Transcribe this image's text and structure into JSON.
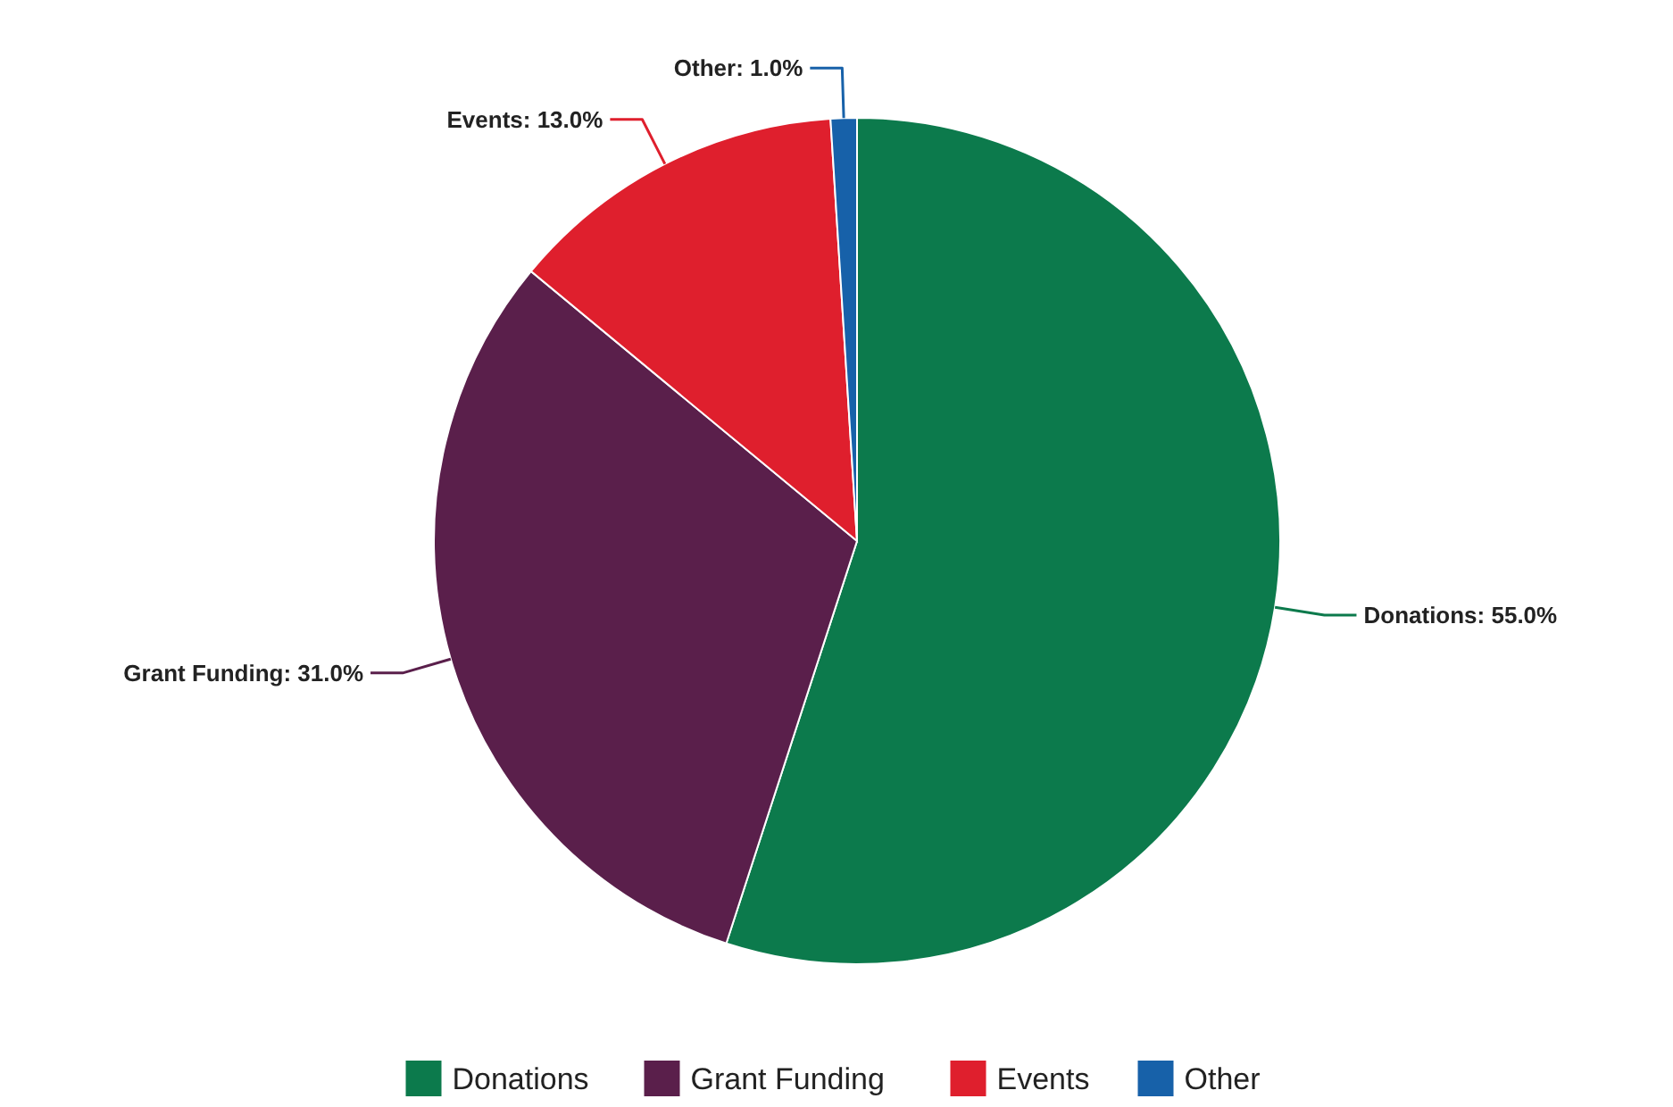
{
  "chart_data": {
    "type": "pie",
    "categories": [
      "Donations",
      "Grant Funding",
      "Events",
      "Other"
    ],
    "values": [
      55.0,
      31.0,
      13.0,
      1.0
    ],
    "colors": [
      "#0c7a4c",
      "#5a1f4b",
      "#df1f2d",
      "#1761a9"
    ],
    "value_labels": [
      "Donations: 55.0%",
      "Grant Funding: 31.0%",
      "Events: 13.0%",
      "Other: 1.0%"
    ],
    "legend": "bottom"
  }
}
